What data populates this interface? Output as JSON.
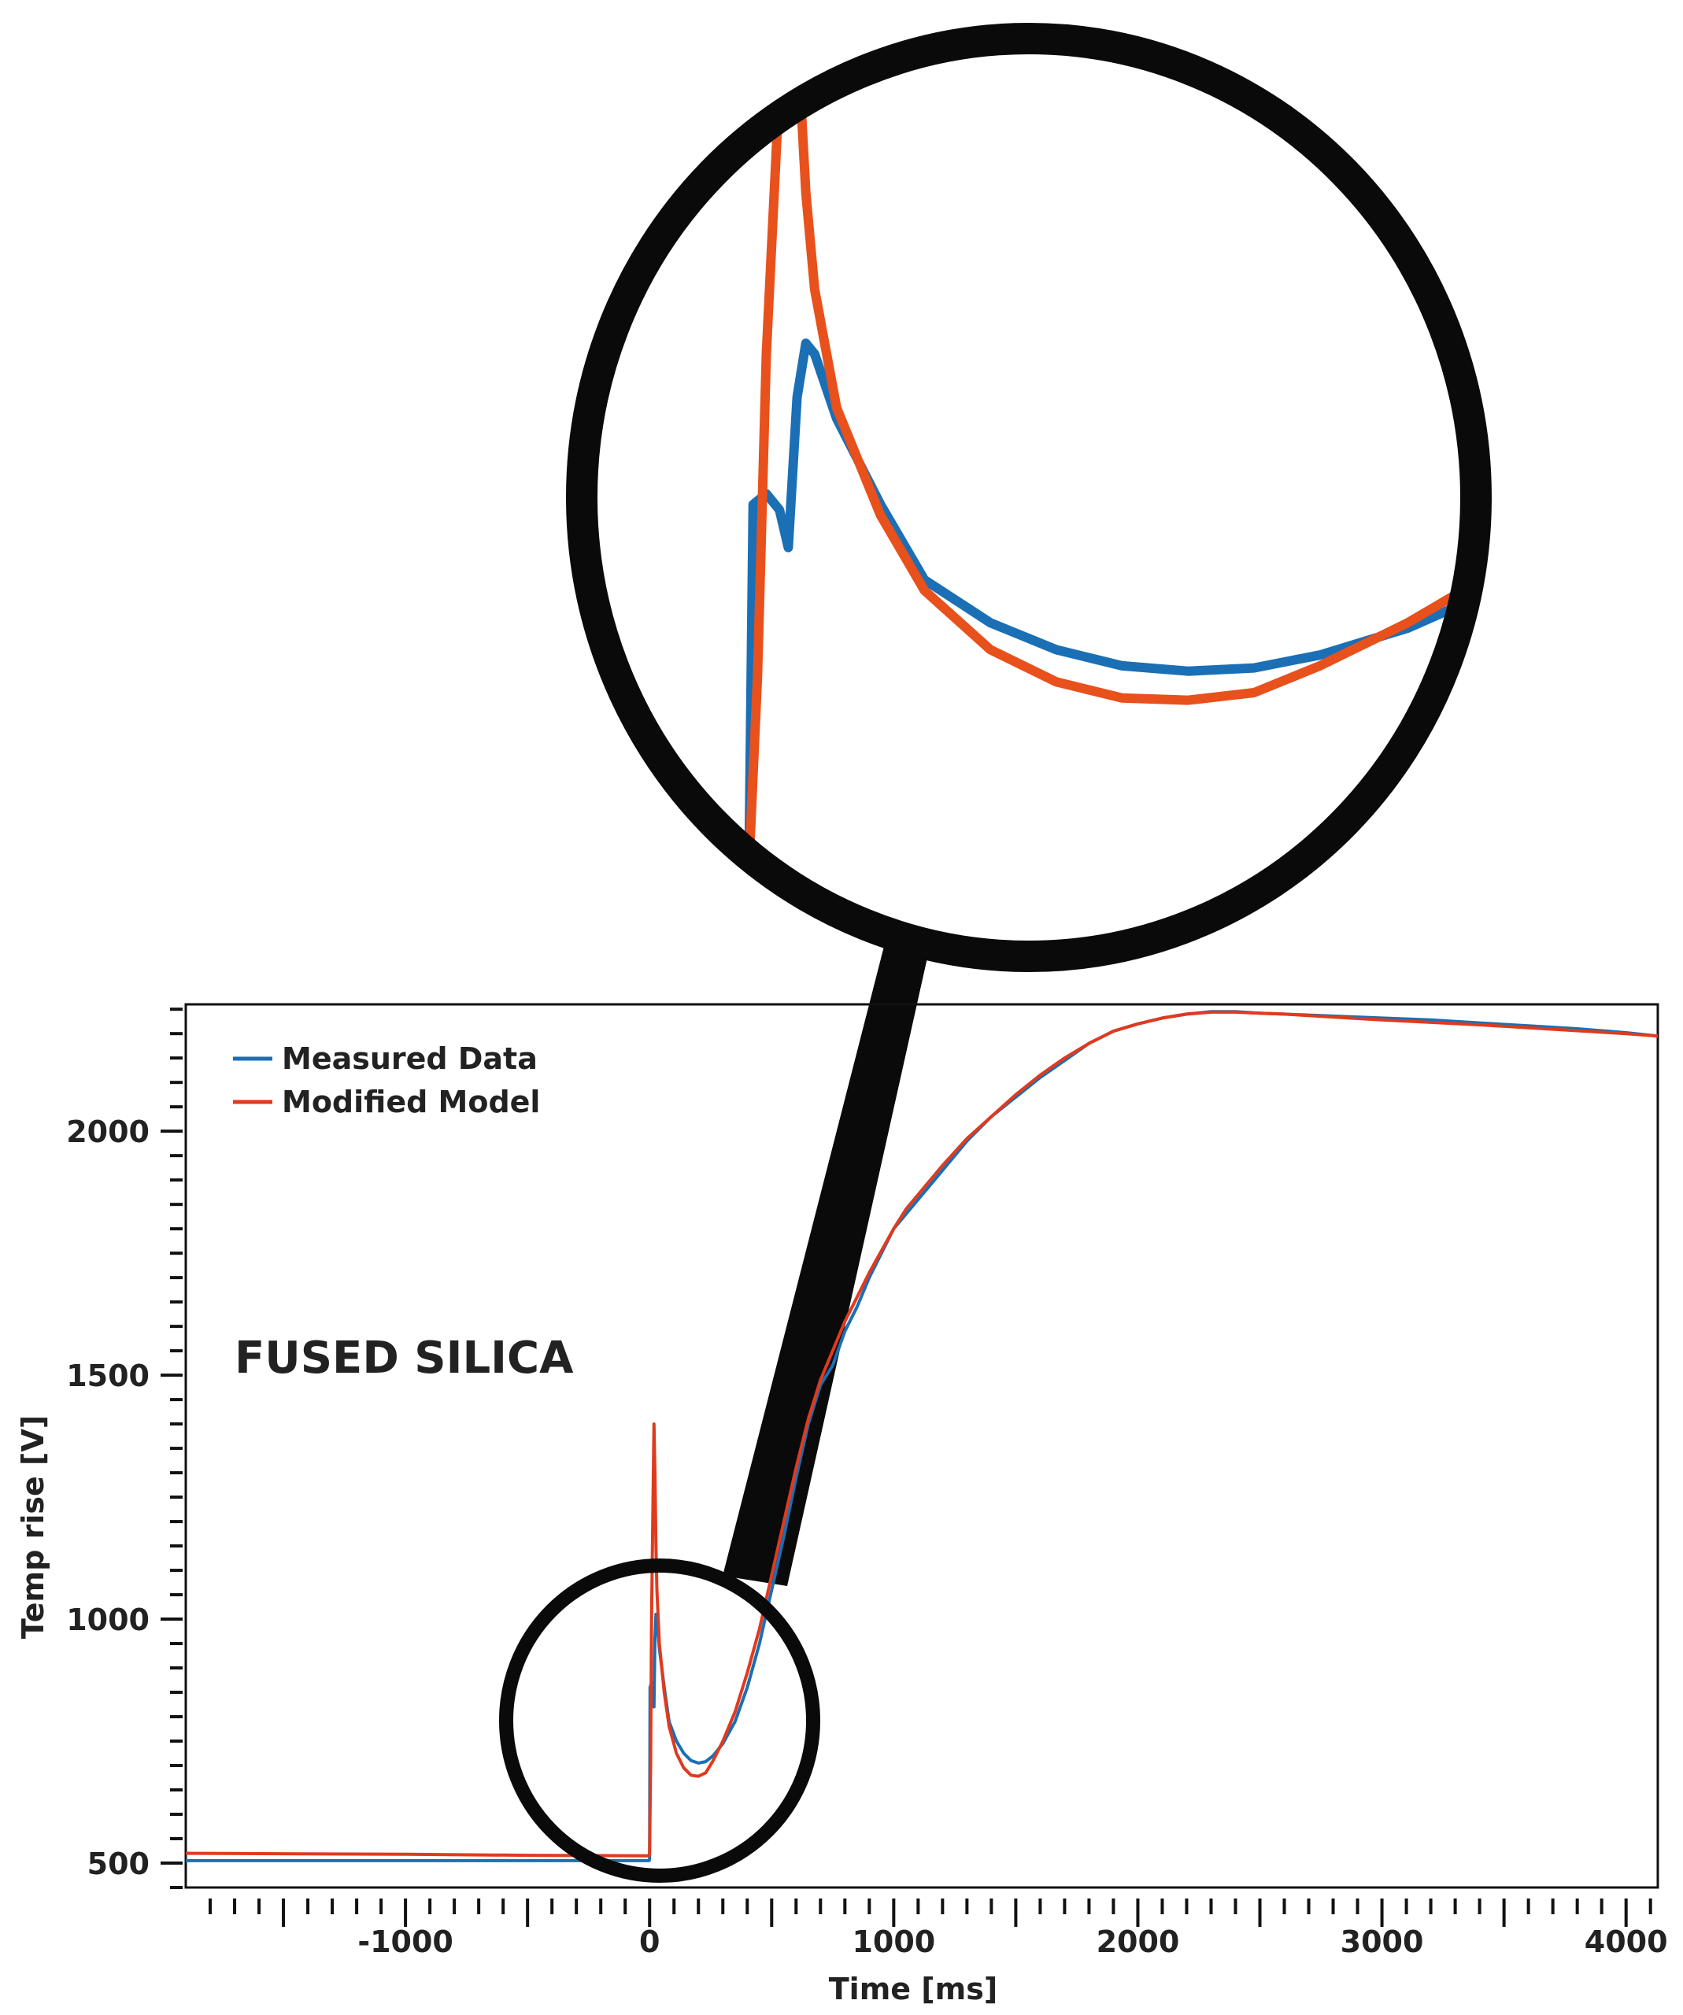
{
  "chart_data": {
    "type": "line",
    "title": "",
    "xlabel": "Time [ms]",
    "ylabel": "Temp rise [V]",
    "xlim": [
      -1900,
      4130
    ],
    "ylim": [
      450,
      2260
    ],
    "xticks": [
      -1000,
      0,
      1000,
      2000,
      3000,
      4000
    ],
    "xtick_labels": [
      "-1000",
      "0",
      "1000",
      "2000",
      "3000",
      "4000"
    ],
    "yticks": [
      500,
      1000,
      1500,
      2000
    ],
    "ytick_labels": [
      "500",
      "1000",
      "1500",
      "2000"
    ],
    "legend": {
      "position": "top-left",
      "entries": [
        "Measured Data",
        "Modified Model"
      ]
    },
    "annotation": "FUSED SILICA",
    "grid": false,
    "inset": {
      "description_of_zoom": "magnified view of region near t=0",
      "xlim": [
        -90,
        340
      ],
      "ylim": [
        480,
        1300
      ]
    },
    "series": [
      {
        "name": "Measured Data",
        "color": "#1a6fb5",
        "x": [
          -1900,
          -1000,
          -500,
          -20,
          -2,
          0,
          2,
          8,
          14,
          18,
          22,
          26,
          30,
          40,
          60,
          80,
          110,
          140,
          170,
          200,
          230,
          260,
          300,
          350,
          400,
          450,
          500,
          550,
          600,
          650,
          700,
          750,
          800,
          850,
          900,
          950,
          1000,
          1050,
          1100,
          1200,
          1300,
          1400,
          1500,
          1600,
          1700,
          1800,
          1900,
          2000,
          2100,
          2200,
          2300,
          2400,
          2500,
          2600,
          2700,
          2800,
          2900,
          3000,
          3200,
          3400,
          3600,
          3800,
          4000,
          4130
        ],
        "y": [
          505,
          505,
          505,
          505,
          505,
          508,
          860,
          870,
          855,
          820,
          960,
          1010,
          1000,
          940,
          860,
          790,
          750,
          725,
          710,
          705,
          708,
          720,
          745,
          790,
          860,
          950,
          1060,
          1170,
          1290,
          1400,
          1480,
          1520,
          1590,
          1640,
          1700,
          1750,
          1800,
          1830,
          1860,
          1920,
          1980,
          2030,
          2070,
          2110,
          2145,
          2180,
          2205,
          2220,
          2232,
          2240,
          2245,
          2245,
          2242,
          2240,
          2238,
          2236,
          2234,
          2232,
          2228,
          2222,
          2216,
          2210,
          2202,
          2195
        ]
      },
      {
        "name": "Modified Model",
        "color": "#e03a1e",
        "x": [
          -1900,
          -1000,
          -500,
          -20,
          -2,
          0,
          4,
          8,
          14,
          18,
          22,
          26,
          30,
          40,
          60,
          80,
          110,
          140,
          170,
          200,
          230,
          260,
          300,
          350,
          400,
          450,
          500,
          550,
          600,
          650,
          700,
          750,
          800,
          850,
          900,
          950,
          1000,
          1050,
          1100,
          1200,
          1300,
          1400,
          1500,
          1600,
          1700,
          1800,
          1900,
          2000,
          2100,
          2200,
          2300,
          2400,
          2500,
          2600,
          2700,
          2800,
          2900,
          3000,
          3200,
          3400,
          3600,
          3800,
          4000,
          4130
        ],
        "y": [
          520,
          518,
          516,
          515,
          515,
          520,
          700,
          1000,
          1250,
          1400,
          1300,
          1150,
          1060,
          950,
          850,
          780,
          725,
          695,
          680,
          678,
          685,
          710,
          750,
          810,
          890,
          980,
          1090,
          1200,
          1310,
          1410,
          1490,
          1550,
          1610,
          1660,
          1710,
          1755,
          1800,
          1840,
          1870,
          1930,
          1985,
          2030,
          2075,
          2115,
          2150,
          2180,
          2205,
          2220,
          2232,
          2240,
          2244,
          2244,
          2242,
          2240,
          2237,
          2234,
          2231,
          2228,
          2223,
          2218,
          2212,
          2206,
          2200,
          2195
        ]
      }
    ]
  },
  "colors": {
    "measured": "#1a6fb5",
    "model": "#e03a1e",
    "frame": "#111111",
    "magnifier": "#0a0a0a"
  }
}
